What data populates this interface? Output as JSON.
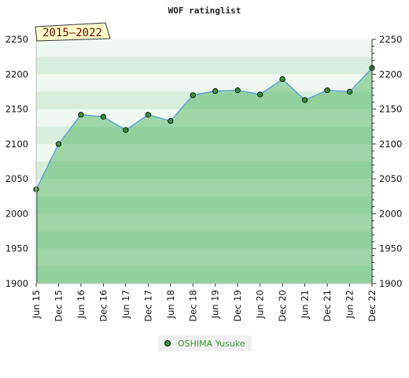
{
  "chart_data": {
    "type": "area",
    "title": "WOF ratinglist",
    "badge": "2015–2022",
    "categories": [
      "Jun 15",
      "Dec 15",
      "Jun 16",
      "Dec 16",
      "Jun 17",
      "Dec 17",
      "Jun 18",
      "Dec 18",
      "Jun 19",
      "Dec 19",
      "Jun 20",
      "Dec 20",
      "Jun 21",
      "Dec 21",
      "Jun 22",
      "Dec 22"
    ],
    "series": [
      {
        "name": "OSHIMA Yusuke",
        "values": [
          2035,
          2100,
          2142,
          2139,
          2120,
          2142,
          2133,
          2170,
          2176,
          2177,
          2171,
          2193,
          2163,
          2177,
          2175,
          2209
        ]
      }
    ],
    "y_ticks": [
      1900,
      1950,
      2000,
      2050,
      2100,
      2150,
      2200,
      2250
    ],
    "ylim": [
      1900,
      2250
    ],
    "xlabel": "",
    "ylabel": "",
    "legend_position": "bottom",
    "colors": {
      "line": "#5aa0d8",
      "area": "#3cae4f",
      "marker": "#3a8f3a",
      "badge_bg": "#ffffcc",
      "badge_text": "#7a0000"
    }
  }
}
